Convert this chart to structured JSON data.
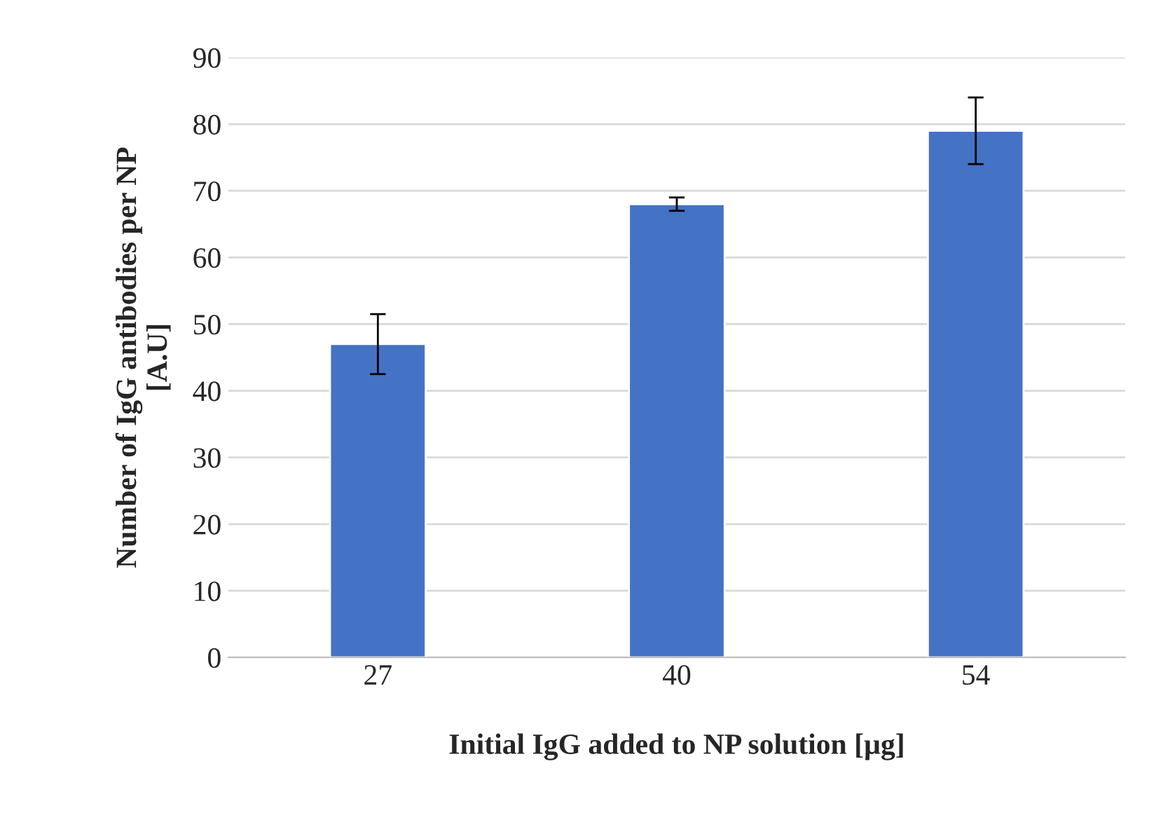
{
  "chart_data": {
    "type": "bar",
    "xlabel": "Initial IgG added to NP solution [µg]",
    "ylabel": "Number of IgG antibodies per NP\n[A.U]",
    "categories": [
      "27",
      "40",
      "54"
    ],
    "values": [
      47,
      68,
      79
    ],
    "errors": [
      [
        42.5,
        51.5
      ],
      [
        67,
        69
      ],
      [
        74,
        84
      ]
    ],
    "color": "#4472c4",
    "ylim": [
      0,
      90
    ],
    "yticks": [
      0,
      10,
      20,
      30,
      40,
      50,
      60,
      70,
      80,
      90
    ],
    "grid": "y",
    "legend": false
  }
}
